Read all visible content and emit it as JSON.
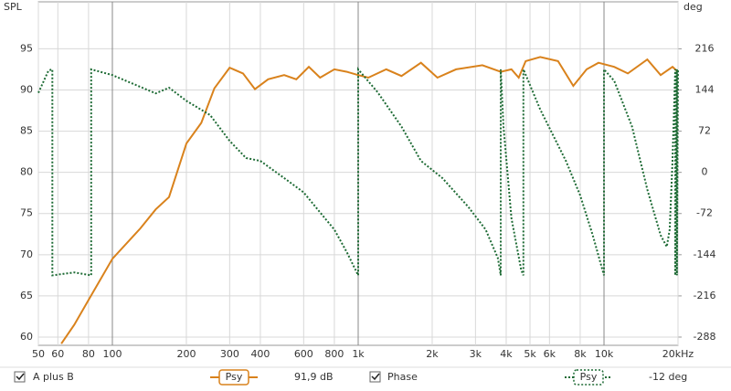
{
  "chart_data": {
    "type": "line",
    "x_scale": "log",
    "grid": true,
    "ylabel": "SPL",
    "y2label": "deg",
    "xlim": [
      50,
      20000
    ],
    "xticks": [
      50,
      60,
      80,
      100,
      200,
      300,
      400,
      600,
      800,
      {
        "value": 1000,
        "label": "1k"
      },
      {
        "value": 2000,
        "label": "2k"
      },
      {
        "value": 3000,
        "label": "3k"
      },
      {
        "value": 4000,
        "label": "4k"
      },
      {
        "value": 5000,
        "label": "5k"
      },
      {
        "value": 6000,
        "label": "6k"
      },
      {
        "value": 8000,
        "label": "8k"
      },
      {
        "value": 10000,
        "label": "10k"
      },
      {
        "value": 20000,
        "label": "20kHz"
      }
    ],
    "ylim": [
      59,
      100.7
    ],
    "yticks": [
      60,
      65,
      70,
      75,
      80,
      85,
      90,
      95
    ],
    "y2lim": [
      -302.4,
      298.1
    ],
    "y2ticks": [
      -288,
      -216,
      -144,
      -72,
      0,
      72,
      144,
      216
    ],
    "series": [
      {
        "name": "A plus B",
        "color": "#d9821c",
        "smoothing": "Psy",
        "readout": "91,9 dB",
        "x": [
          62,
          70,
          80,
          100,
          130,
          150,
          170,
          200,
          230,
          260,
          300,
          340,
          380,
          430,
          500,
          560,
          630,
          700,
          800,
          900,
          1000,
          1100,
          1300,
          1500,
          1800,
          2100,
          2500,
          3200,
          3800,
          4200,
          4500,
          4800,
          5500,
          6500,
          7500,
          8500,
          9500,
          11000,
          12500,
          15000,
          17000,
          19000,
          20000
        ],
        "values": [
          59.2,
          61.5,
          64.5,
          69.5,
          73.2,
          75.5,
          77,
          83.5,
          86,
          90.2,
          92.7,
          92,
          90.1,
          91.3,
          91.8,
          91.3,
          92.8,
          91.5,
          92.5,
          92.2,
          91.8,
          91.5,
          92.5,
          91.7,
          93.3,
          91.5,
          92.5,
          93,
          92.2,
          92.5,
          91.5,
          93.5,
          94,
          93.5,
          90.5,
          92.5,
          93.3,
          92.8,
          92,
          93.7,
          91.8,
          92.8,
          92.2
        ]
      },
      {
        "name": "Phase",
        "color": "#1e6b35",
        "axis": "y2",
        "smoothing": "Psy",
        "readout": "-12 deg",
        "x": [
          50,
          55,
          57,
          57,
          70,
          82,
          82,
          100,
          150,
          170,
          200,
          250,
          300,
          350,
          400,
          500,
          600,
          700,
          800,
          900,
          1000,
          1000,
          1200,
          1500,
          1800,
          2200,
          2800,
          3300,
          3700,
          3800,
          3800,
          3900,
          4200,
          4600,
          4700,
          4700,
          5500,
          7000,
          8000,
          9000,
          10000,
          10000,
          11000,
          13000,
          15000,
          17000,
          18000,
          18500,
          19000,
          19500,
          19500,
          19800,
          19800,
          20000
        ],
        "values": [
          139,
          178,
          180,
          -180,
          -175,
          -180,
          180,
          170,
          138,
          148,
          125,
          100,
          55,
          25,
          20,
          -10,
          -35,
          -70,
          -100,
          -140,
          -180,
          180,
          140,
          80,
          20,
          -10,
          -60,
          -100,
          -150,
          -180,
          180,
          80,
          -80,
          -170,
          -180,
          180,
          110,
          20,
          -40,
          -110,
          -180,
          180,
          160,
          80,
          -30,
          -110,
          -130,
          -100,
          20,
          180,
          -180,
          180,
          -180,
          180
        ]
      }
    ]
  }
}
